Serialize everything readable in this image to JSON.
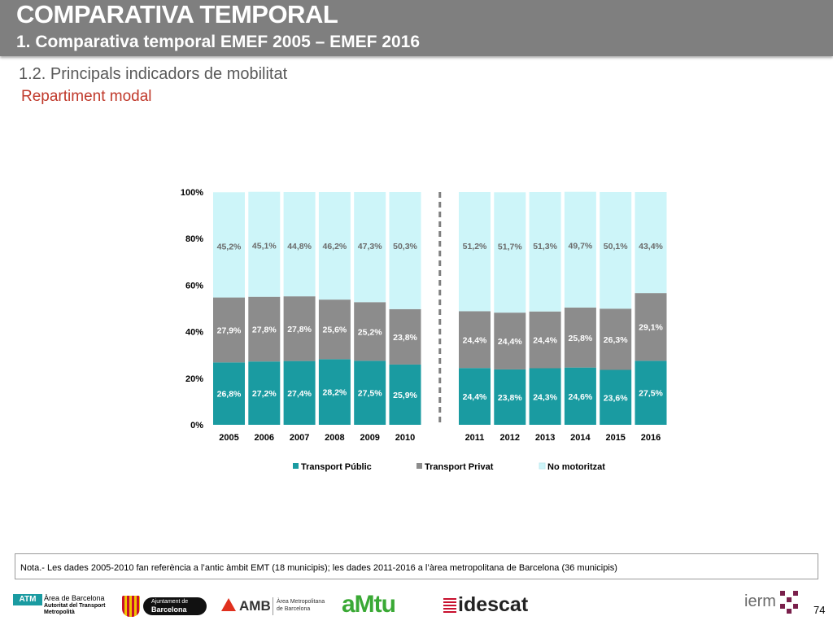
{
  "header": {
    "title": "COMPARATIVA TEMPORAL",
    "subtitle": "1. Comparativa temporal EMEF 2005 – EMEF 2016"
  },
  "section": {
    "heading": "1.2. Principals indicadors de mobilitat",
    "subheading": "Repartiment modal"
  },
  "chart_data": {
    "type": "bar",
    "stacked": true,
    "categories": [
      "2005",
      "2006",
      "2007",
      "2008",
      "2009",
      "2010",
      "2011",
      "2012",
      "2013",
      "2014",
      "2015",
      "2016"
    ],
    "series": [
      {
        "name": "Transport Públic",
        "color": "#1a9ba1",
        "values": [
          26.8,
          27.2,
          27.4,
          28.2,
          27.5,
          25.9,
          24.4,
          23.8,
          24.3,
          24.6,
          23.6,
          27.5
        ],
        "labels": [
          "26,8%",
          "27,2%",
          "27,4%",
          "28,2%",
          "27,5%",
          "25,9%",
          "24,4%",
          "23,8%",
          "24,3%",
          "24,6%",
          "23,6%",
          "27,5%"
        ]
      },
      {
        "name": "Transport Privat",
        "color": "#8c8c8c",
        "values": [
          27.9,
          27.8,
          27.8,
          25.6,
          25.2,
          23.8,
          24.4,
          24.4,
          24.4,
          25.8,
          26.3,
          29.1
        ],
        "labels": [
          "27,9%",
          "27,8%",
          "27,8%",
          "25,6%",
          "25,2%",
          "23,8%",
          "24,4%",
          "24,4%",
          "24,4%",
          "25,8%",
          "26,3%",
          "29,1%"
        ]
      },
      {
        "name": "No motoritzat",
        "color": "#cdf5f9",
        "values": [
          45.2,
          45.1,
          44.8,
          46.2,
          47.3,
          50.3,
          51.2,
          51.7,
          51.3,
          49.7,
          50.1,
          43.4
        ],
        "labels": [
          "45,2%",
          "45,1%",
          "44,8%",
          "46,2%",
          "47,3%",
          "50,3%",
          "51,2%",
          "51,7%",
          "51,3%",
          "49,7%",
          "50,1%",
          "43,4%"
        ]
      }
    ],
    "yticks": [
      "0%",
      "20%",
      "40%",
      "60%",
      "80%",
      "100%"
    ],
    "ylim": [
      0,
      100
    ],
    "legend_position": "bottom",
    "separator_after": "2010"
  },
  "note": "Nota.- Les dades 2005-2010 fan referència a l’antic àmbit EMT (18 municipis); les dades 2011-2016 a l’àrea metropolitana de Barcelona (36 municipis)",
  "logos": {
    "atm_mark": "ATM",
    "atm_line1": "Àrea de Barcelona",
    "atm_line2": "Autoritat del Transport",
    "atm_line3": "Metropolità",
    "ajuntament_line1": "Ajuntament de",
    "ajuntament_line2": "Barcelona",
    "amb_mark": "AMB",
    "amb_line1": "Àrea Metropolitana",
    "amb_line2": "de Barcelona",
    "amtu_mark": "aMtu",
    "idescat_mark": "idescat",
    "iermb_mark": "ierm"
  },
  "page_number": "74"
}
